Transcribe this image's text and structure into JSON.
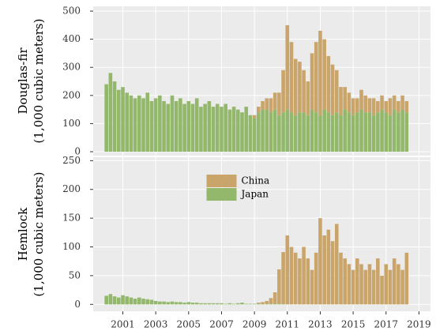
{
  "chart_data": [
    {
      "type": "bar",
      "ylabel": [
        "Douglas-fir",
        "(1,000 cubic meters)"
      ],
      "x": [
        2000,
        2000.25,
        2000.5,
        2000.75,
        2001,
        2001.25,
        2001.5,
        2001.75,
        2002,
        2002.25,
        2002.5,
        2002.75,
        2003,
        2003.25,
        2003.5,
        2003.75,
        2004,
        2004.25,
        2004.5,
        2004.75,
        2005,
        2005.25,
        2005.5,
        2005.75,
        2006,
        2006.25,
        2006.5,
        2006.75,
        2007,
        2007.25,
        2007.5,
        2007.75,
        2008,
        2008.25,
        2008.5,
        2008.75,
        2009,
        2009.25,
        2009.5,
        2009.75,
        2010,
        2010.25,
        2010.5,
        2010.75,
        2011,
        2011.25,
        2011.5,
        2011.75,
        2012,
        2012.25,
        2012.5,
        2012.75,
        2013,
        2013.25,
        2013.5,
        2013.75,
        2014,
        2014.25,
        2014.5,
        2014.75,
        2015,
        2015.25,
        2015.5,
        2015.75,
        2016,
        2016.25,
        2016.5,
        2016.75,
        2017,
        2017.25,
        2017.5,
        2017.75,
        2018,
        2018.25
      ],
      "series": [
        {
          "name": "China",
          "color": "#c9a56b",
          "values": [
            0,
            0,
            0,
            0,
            0,
            0,
            0,
            0,
            0,
            0,
            0,
            0,
            0,
            0,
            0,
            0,
            0,
            0,
            0,
            0,
            0,
            0,
            0,
            0,
            0,
            0,
            0,
            0,
            0,
            0,
            0,
            0,
            0,
            0,
            0,
            0,
            10,
            20,
            30,
            40,
            50,
            60,
            80,
            150,
            300,
            250,
            200,
            180,
            150,
            120,
            200,
            250,
            300,
            250,
            200,
            180,
            150,
            100,
            80,
            70,
            60,
            50,
            70,
            60,
            50,
            60,
            40,
            50,
            40,
            60,
            50,
            40,
            50,
            40
          ]
        },
        {
          "name": "Japan",
          "color": "#93b86c",
          "values": [
            240,
            280,
            250,
            220,
            230,
            210,
            200,
            190,
            200,
            190,
            210,
            180,
            190,
            200,
            180,
            170,
            200,
            180,
            190,
            170,
            180,
            170,
            190,
            160,
            170,
            180,
            160,
            170,
            160,
            170,
            150,
            160,
            150,
            140,
            160,
            130,
            120,
            140,
            150,
            150,
            140,
            150,
            130,
            140,
            150,
            140,
            130,
            140,
            140,
            130,
            150,
            140,
            130,
            150,
            140,
            130,
            140,
            130,
            150,
            140,
            130,
            140,
            150,
            140,
            140,
            130,
            140,
            150,
            140,
            130,
            150,
            140,
            150,
            140
          ]
        }
      ],
      "xlim": [
        1999.2,
        2019.7
      ],
      "xticks": [
        2001,
        2003,
        2005,
        2007,
        2009,
        2011,
        2013,
        2015,
        2017,
        2019
      ],
      "ylim": [
        -14,
        517
      ],
      "yticks": [
        0,
        100,
        200,
        300,
        400,
        500
      ],
      "grid": true
    },
    {
      "type": "bar",
      "ylabel": [
        "Hemlock",
        "(1,000 cubic meters)"
      ],
      "x": [
        2000,
        2000.25,
        2000.5,
        2000.75,
        2001,
        2001.25,
        2001.5,
        2001.75,
        2002,
        2002.25,
        2002.5,
        2002.75,
        2003,
        2003.25,
        2003.5,
        2003.75,
        2004,
        2004.25,
        2004.5,
        2004.75,
        2005,
        2005.25,
        2005.5,
        2005.75,
        2006,
        2006.25,
        2006.5,
        2006.75,
        2007,
        2007.25,
        2007.5,
        2007.75,
        2008,
        2008.25,
        2008.5,
        2008.75,
        2009,
        2009.25,
        2009.5,
        2009.75,
        2010,
        2010.25,
        2010.5,
        2010.75,
        2011,
        2011.25,
        2011.5,
        2011.75,
        2012,
        2012.25,
        2012.5,
        2012.75,
        2013,
        2013.25,
        2013.5,
        2013.75,
        2014,
        2014.25,
        2014.5,
        2014.75,
        2015,
        2015.25,
        2015.5,
        2015.75,
        2016,
        2016.25,
        2016.5,
        2016.75,
        2017,
        2017.25,
        2017.5,
        2017.75,
        2018,
        2018.25
      ],
      "series": [
        {
          "name": "China",
          "color": "#c9a56b",
          "values": [
            0,
            0,
            0,
            0,
            0,
            0,
            0,
            0,
            0,
            0,
            0,
            0,
            0,
            0,
            0,
            0,
            0,
            0,
            0,
            0,
            0,
            0,
            0,
            0,
            0,
            0,
            0,
            0,
            0,
            0,
            0,
            0,
            0,
            0,
            0,
            0,
            0,
            2,
            3,
            5,
            10,
            20,
            60,
            90,
            120,
            100,
            90,
            80,
            100,
            80,
            60,
            90,
            150,
            120,
            130,
            110,
            140,
            90,
            80,
            70,
            60,
            80,
            70,
            60,
            70,
            60,
            80,
            50,
            70,
            60,
            80,
            70,
            60,
            90
          ]
        },
        {
          "name": "Japan",
          "color": "#93b86c",
          "values": [
            15,
            18,
            14,
            12,
            16,
            14,
            12,
            10,
            12,
            10,
            9,
            8,
            6,
            5,
            5,
            4,
            5,
            4,
            4,
            3,
            4,
            3,
            3,
            2,
            2,
            2,
            2,
            2,
            2,
            1,
            2,
            1,
            2,
            3,
            1,
            1,
            1,
            1,
            1,
            1,
            1,
            1,
            1,
            1,
            0,
            0,
            0,
            0,
            0,
            0,
            0,
            0,
            0,
            0,
            0,
            0,
            0,
            0,
            0,
            0,
            0,
            0,
            0,
            0,
            0,
            0,
            0,
            0,
            0,
            0,
            0,
            0,
            0,
            0
          ]
        }
      ],
      "xlim": [
        1999.2,
        2019.7
      ],
      "xticks": [
        2001,
        2003,
        2005,
        2007,
        2009,
        2011,
        2013,
        2015,
        2017,
        2019
      ],
      "ylim": [
        -12,
        256
      ],
      "yticks": [
        0,
        50,
        100,
        150,
        200,
        250
      ],
      "grid": true,
      "legend": "top-center"
    }
  ]
}
